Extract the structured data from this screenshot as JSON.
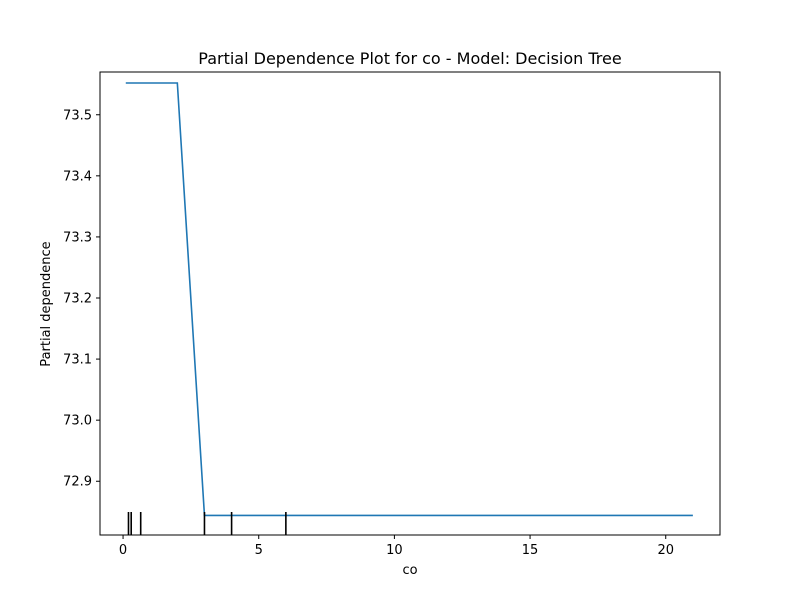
{
  "chart_data": {
    "type": "line",
    "title": "Partial Dependence Plot for co - Model: Decision Tree",
    "xlabel": "co",
    "ylabel": "Partial dependence",
    "xlim": [
      -0.85,
      22.0
    ],
    "ylim": [
      72.812,
      73.57
    ],
    "xticks": [
      0,
      5,
      10,
      15,
      20
    ],
    "xtick_labels": [
      "0",
      "5",
      "10",
      "15",
      "20"
    ],
    "yticks": [
      72.9,
      73.0,
      73.1,
      73.2,
      73.3,
      73.4,
      73.5
    ],
    "ytick_labels": [
      "72.9",
      "73.0",
      "73.1",
      "73.2",
      "73.3",
      "73.4",
      "73.5"
    ],
    "grid": false,
    "series": [
      {
        "color": "#1f77b4",
        "x": [
          0.1,
          2.0,
          3.0,
          21.0
        ],
        "y": [
          73.552,
          73.552,
          72.844,
          72.844
        ]
      }
    ],
    "rug": {
      "color": "#000000",
      "x": [
        0.2,
        0.3,
        0.65,
        3.0,
        4.0,
        6.0
      ]
    }
  }
}
